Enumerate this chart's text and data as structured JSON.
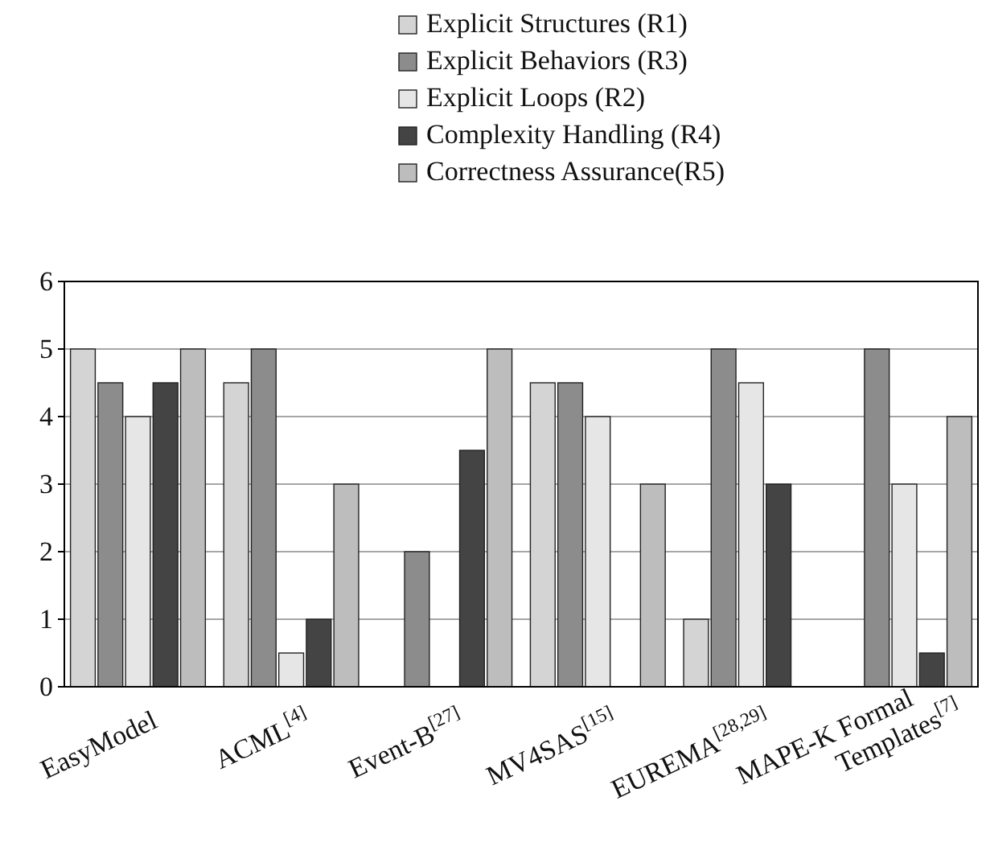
{
  "chart_data": {
    "type": "bar",
    "categories": [
      "EasyModel",
      "ACML$^{[4]}$",
      "Event-B$^{[27]}$",
      "MV4SAS$^{[15]}$",
      "EUREMA$^{[28,29]}$",
      "MAPE-K Formal Templates$^{[7]}$"
    ],
    "series": [
      {
        "name": "Explicit Structures (R1)",
        "color": "#d4d4d4",
        "values": [
          5,
          4.5,
          0,
          4.5,
          1,
          0
        ]
      },
      {
        "name": "Explicit Behaviors (R3)",
        "color": "#8c8c8c",
        "values": [
          4.5,
          5,
          2,
          4.5,
          5,
          5
        ]
      },
      {
        "name": "Explicit Loops (R2)",
        "color": "#e6e6e6",
        "values": [
          4,
          0.5,
          0,
          4,
          4.5,
          3
        ]
      },
      {
        "name": "Complexity Handling (R4)",
        "color": "#444444",
        "values": [
          4.5,
          1,
          3.5,
          0,
          3,
          0.5
        ]
      },
      {
        "name": "Correctness Assurance(R5)",
        "color": "#bdbdbd",
        "values": [
          5,
          3,
          5,
          3,
          0,
          4
        ]
      }
    ],
    "ylim": [
      0,
      6
    ],
    "yticks": [
      0,
      1,
      2,
      3,
      4,
      5,
      6
    ],
    "grid": "y",
    "legend": "top"
  }
}
